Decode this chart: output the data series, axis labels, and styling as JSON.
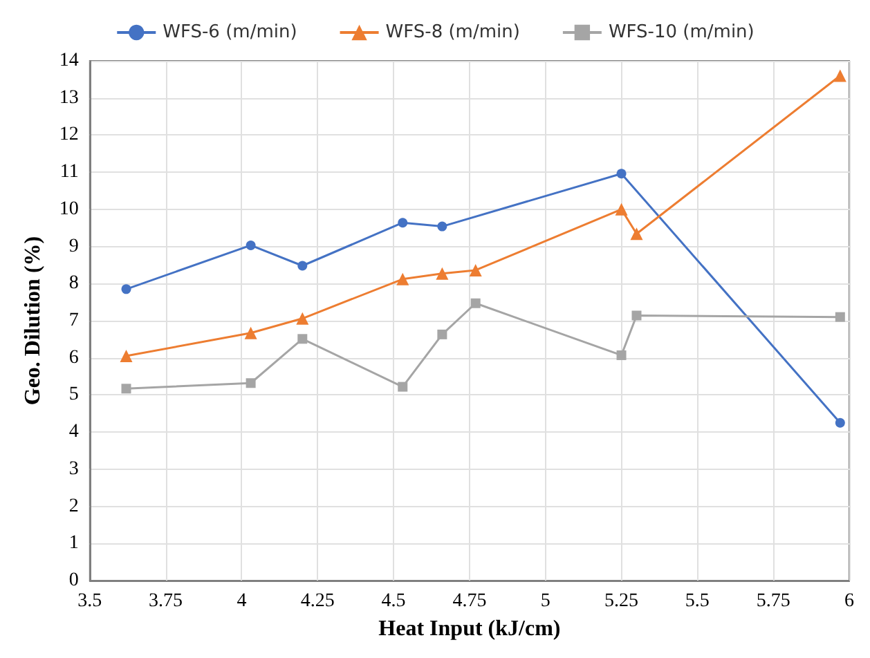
{
  "chart_data": {
    "type": "line",
    "xlabel": "Heat Input (kJ/cm)",
    "ylabel": "Geo. Dilution (%)",
    "xlim": [
      3.5,
      6
    ],
    "xticks": [
      3.5,
      3.75,
      4,
      4.25,
      4.5,
      4.75,
      5,
      5.25,
      5.5,
      5.75,
      6
    ],
    "ylim": [
      0,
      14
    ],
    "yticks": [
      0,
      1,
      2,
      3,
      4,
      5,
      6,
      7,
      8,
      9,
      10,
      11,
      12,
      13,
      14
    ],
    "grid": true,
    "legend": "top",
    "series": [
      {
        "name": "WFS-6 (m/min)",
        "color": "#4472c4",
        "marker": "circle",
        "x": [
          3.62,
          4.03,
          4.2,
          4.53,
          4.66,
          5.25,
          5.97
        ],
        "values": [
          7.85,
          9.03,
          8.48,
          9.64,
          9.54,
          10.96,
          4.25
        ]
      },
      {
        "name": "WFS-8 (m/min)",
        "color": "#ed7d31",
        "marker": "triangle",
        "x": [
          3.62,
          4.03,
          4.2,
          4.53,
          4.66,
          4.77,
          5.25,
          5.3,
          5.97
        ],
        "values": [
          6.05,
          6.67,
          7.06,
          8.12,
          8.27,
          8.36,
          10.0,
          9.34,
          13.6
        ]
      },
      {
        "name": "WFS-10 (m/min)",
        "color": "#a5a5a5",
        "marker": "square",
        "x": [
          3.62,
          4.03,
          4.2,
          4.53,
          4.66,
          4.77,
          5.25,
          5.3,
          5.97
        ],
        "values": [
          5.17,
          5.32,
          6.51,
          5.22,
          6.63,
          7.47,
          6.07,
          7.14,
          7.1
        ]
      }
    ]
  }
}
